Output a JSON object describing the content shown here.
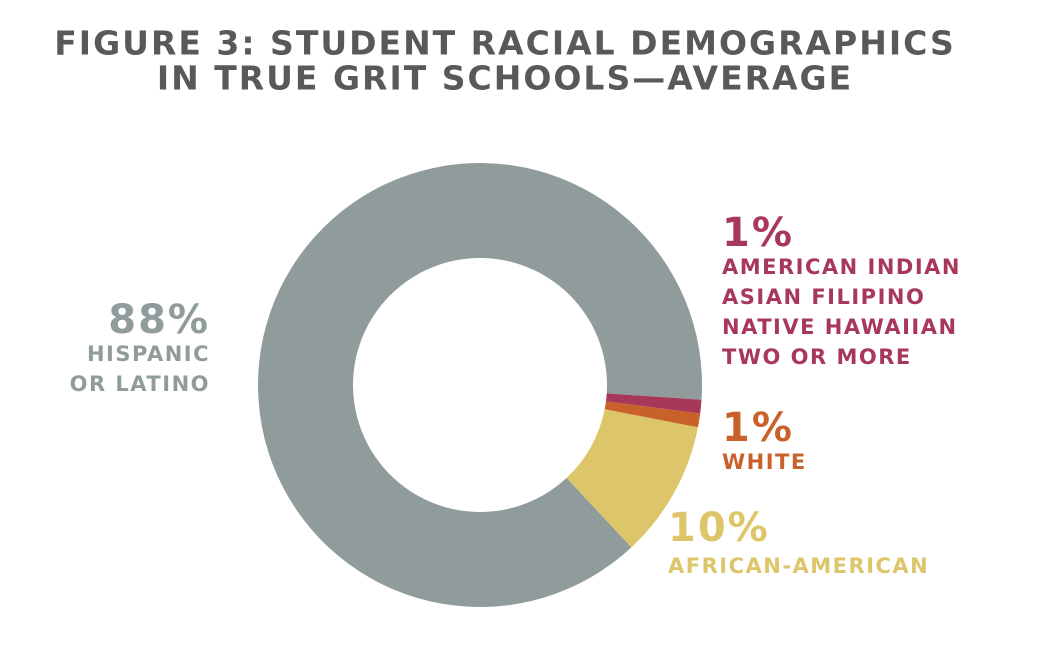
{
  "chart_data": {
    "type": "donut",
    "title": [
      "FIGURE 3: STUDENT RACIAL DEMOGRAPHICS",
      "IN TRUE GRIT SCHOOLS—AVERAGE"
    ],
    "categories": [
      [
        "HISPANIC",
        "OR LATINO"
      ],
      [
        "AMERICAN INDIAN",
        "ASIAN FILIPINO",
        "NATIVE HAWAIIAN",
        "TWO OR MORE"
      ],
      [
        "WHITE"
      ],
      [
        "AFRICAN-AMERICAN"
      ]
    ],
    "values": [
      88,
      1,
      1,
      10
    ],
    "value_labels": [
      "88%",
      "1%",
      "1%",
      "10%"
    ],
    "colors": [
      "#8f9c9b",
      "#a8385a",
      "#c8612a",
      "#ddc56a"
    ]
  }
}
